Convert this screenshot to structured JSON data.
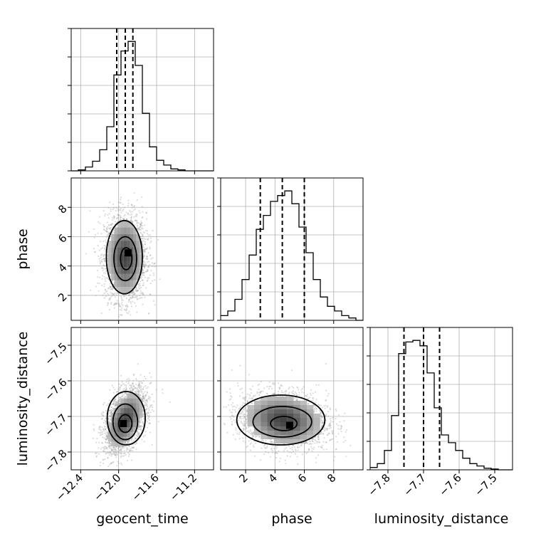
{
  "chart_data": {
    "type": "corner",
    "parameters": [
      "geocent_time",
      "phase",
      "luminosity_distance"
    ],
    "labels": {
      "geocent_time": "geocent_time",
      "phase": "phase",
      "luminosity_distance": "luminosity_distance"
    },
    "ranges": {
      "geocent_time": [
        -12.5,
        -11.0
      ],
      "phase": [
        0.3,
        10.0
      ],
      "luminosity_distance": [
        -7.85,
        -7.45
      ]
    },
    "ticks": {
      "geocent_time": [
        -12.4,
        -12.0,
        -11.6,
        -11.2
      ],
      "phase": [
        2,
        4,
        6,
        8
      ],
      "luminosity_distance": [
        -7.8,
        -7.7,
        -7.6,
        -7.5
      ]
    },
    "tick_labels": {
      "geocent_time": [
        "−12.4",
        "−12.0",
        "−11.6",
        "−11.2"
      ],
      "phase": [
        "2",
        "4",
        "6",
        "8"
      ],
      "luminosity_distance": [
        "−7.8",
        "−7.7",
        "−7.6",
        "−7.5"
      ]
    },
    "quantiles": {
      "geocent_time": [
        -12.02,
        -11.93,
        -11.85
      ],
      "phase": [
        3.0,
        4.5,
        6.0
      ],
      "luminosity_distance": [
        -7.755,
        -7.7,
        -7.655
      ]
    },
    "histograms": {
      "geocent_time": {
        "bin_edges": [
          -12.5,
          -12.425,
          -12.35,
          -12.275,
          -12.2,
          -12.125,
          -12.05,
          -11.975,
          -11.9,
          -11.825,
          -11.75,
          -11.675,
          -11.6,
          -11.525,
          -11.45,
          -11.375,
          -11.3,
          -11.225,
          -11.15,
          -11.075,
          -11.0
        ],
        "counts": [
          0,
          1,
          4,
          10,
          22,
          46,
          100,
          125,
          135,
          110,
          60,
          25,
          11,
          6,
          2,
          1,
          0,
          0,
          0,
          0
        ]
      },
      "phase": {
        "bin_edges": [
          0.3,
          0.785,
          1.27,
          1.755,
          2.24,
          2.725,
          3.21,
          3.695,
          4.18,
          4.665,
          5.15,
          5.635,
          6.12,
          6.605,
          7.09,
          7.575,
          8.06,
          8.545,
          9.03,
          9.515,
          10.0
        ],
        "counts": [
          4,
          8,
          18,
          35,
          56,
          78,
          90,
          102,
          107,
          111,
          100,
          80,
          58,
          35,
          20,
          12,
          8,
          4,
          2,
          0
        ]
      },
      "luminosity_distance": {
        "bin_edges": [
          -7.85,
          -7.83,
          -7.81,
          -7.79,
          -7.77,
          -7.75,
          -7.73,
          -7.71,
          -7.69,
          -7.67,
          -7.65,
          -7.63,
          -7.61,
          -7.59,
          -7.57,
          -7.55,
          -7.53,
          -7.51,
          -7.49,
          -7.47,
          -7.45
        ],
        "counts": [
          3,
          8,
          25,
          70,
          150,
          165,
          167,
          160,
          125,
          80,
          45,
          35,
          25,
          15,
          8,
          5,
          2,
          1,
          0,
          0
        ]
      }
    },
    "joint": [
      {
        "x": "geocent_time",
        "y": "phase",
        "mean": [
          -11.93,
          4.6
        ],
        "sd": [
          0.11,
          1.5
        ],
        "corr": 0.0,
        "point_extent": [
          [
            -12.4,
            -11.35
          ],
          [
            0.4,
            9.5
          ]
        ],
        "peak": [
          -11.9,
          4.9
        ],
        "contours": [
          {
            "cx": -11.92,
            "cy": 4.5,
            "rx": 0.06,
            "ry": 0.75
          },
          {
            "cx": -11.93,
            "cy": 4.5,
            "rx": 0.12,
            "ry": 1.5
          },
          {
            "cx": -11.94,
            "cy": 4.6,
            "rx": 0.19,
            "ry": 2.5
          }
        ]
      },
      {
        "x": "geocent_time",
        "y": "luminosity_distance",
        "mean": [
          -11.93,
          -7.71
        ],
        "sd": [
          0.11,
          0.045
        ],
        "corr": 0.45,
        "point_extent": [
          [
            -12.4,
            -11.4
          ],
          [
            -7.84,
            -7.55
          ]
        ],
        "peak": [
          -11.95,
          -7.72
        ],
        "contours": [
          {
            "cx": -11.93,
            "cy": -7.72,
            "rx": 0.07,
            "ry": 0.025
          },
          {
            "cx": -11.93,
            "cy": -7.715,
            "rx": 0.13,
            "ry": 0.05
          },
          {
            "cx": -11.92,
            "cy": -7.705,
            "rx": 0.2,
            "ry": 0.075
          }
        ]
      },
      {
        "x": "phase",
        "y": "luminosity_distance",
        "mean": [
          4.6,
          -7.71
        ],
        "sd": [
          1.5,
          0.04
        ],
        "corr": -0.15,
        "point_extent": [
          [
            0.5,
            9.5
          ],
          [
            -7.84,
            -7.55
          ]
        ],
        "peak": [
          5.0,
          -7.725
        ],
        "contours": [
          {
            "cx": 4.6,
            "cy": -7.72,
            "rx": 0.9,
            "ry": 0.02
          },
          {
            "cx": 4.5,
            "cy": -7.715,
            "rx": 2.0,
            "ry": 0.043
          },
          {
            "cx": 4.4,
            "cy": -7.71,
            "rx": 3.0,
            "ry": 0.07
          }
        ]
      }
    ],
    "grid": true
  }
}
